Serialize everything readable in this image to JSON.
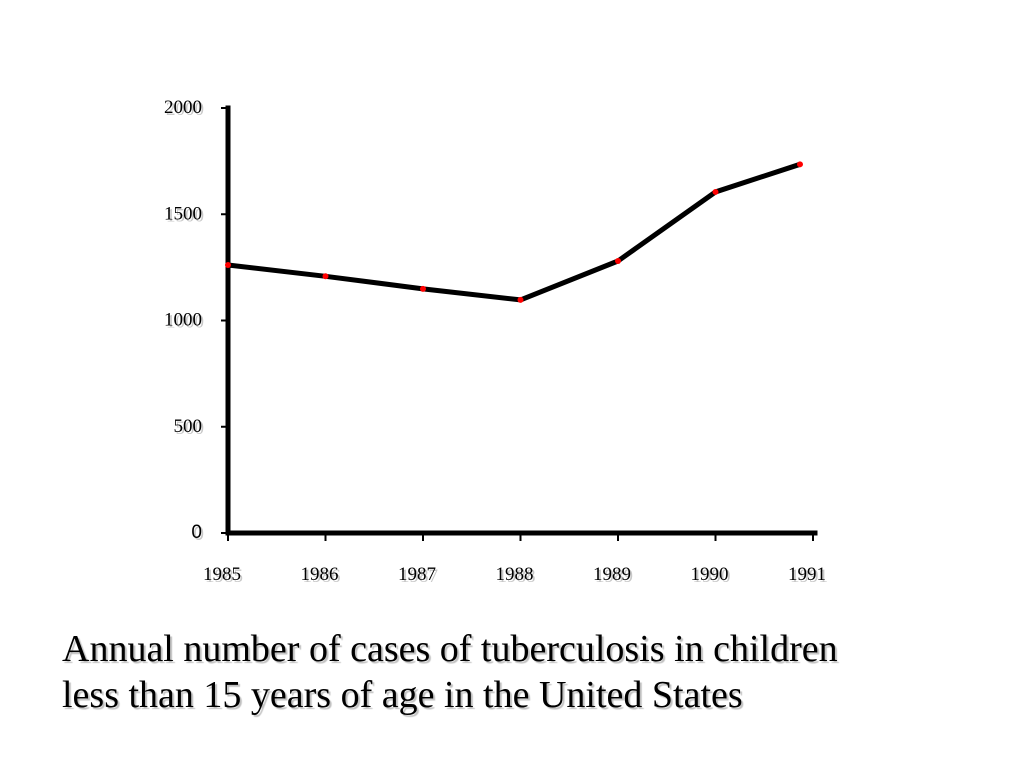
{
  "chart_data": {
    "type": "line",
    "title": "",
    "xlabel": "",
    "ylabel": "",
    "x": [
      "1985",
      "1986",
      "1987",
      "1988",
      "1989",
      "1990",
      "1991"
    ],
    "series": [
      {
        "values": [
          1261,
          1208,
          1149,
          1097,
          1280,
          1605,
          1735
        ],
        "line_color": "#000000",
        "marker_color": "#ff0000"
      }
    ],
    "ylim": [
      0,
      2000
    ],
    "yticks": [
      "0",
      "500",
      "1000",
      "1500",
      "2000"
    ],
    "xticks": [
      "1985",
      "1986",
      "1987",
      "1988",
      "1989",
      "1990",
      "1991"
    ],
    "grid": false,
    "legend": "none"
  },
  "caption": {
    "line1": "Annual number of cases of tuberculosis in children",
    "line2": "less than 15 years of age in the United States"
  }
}
